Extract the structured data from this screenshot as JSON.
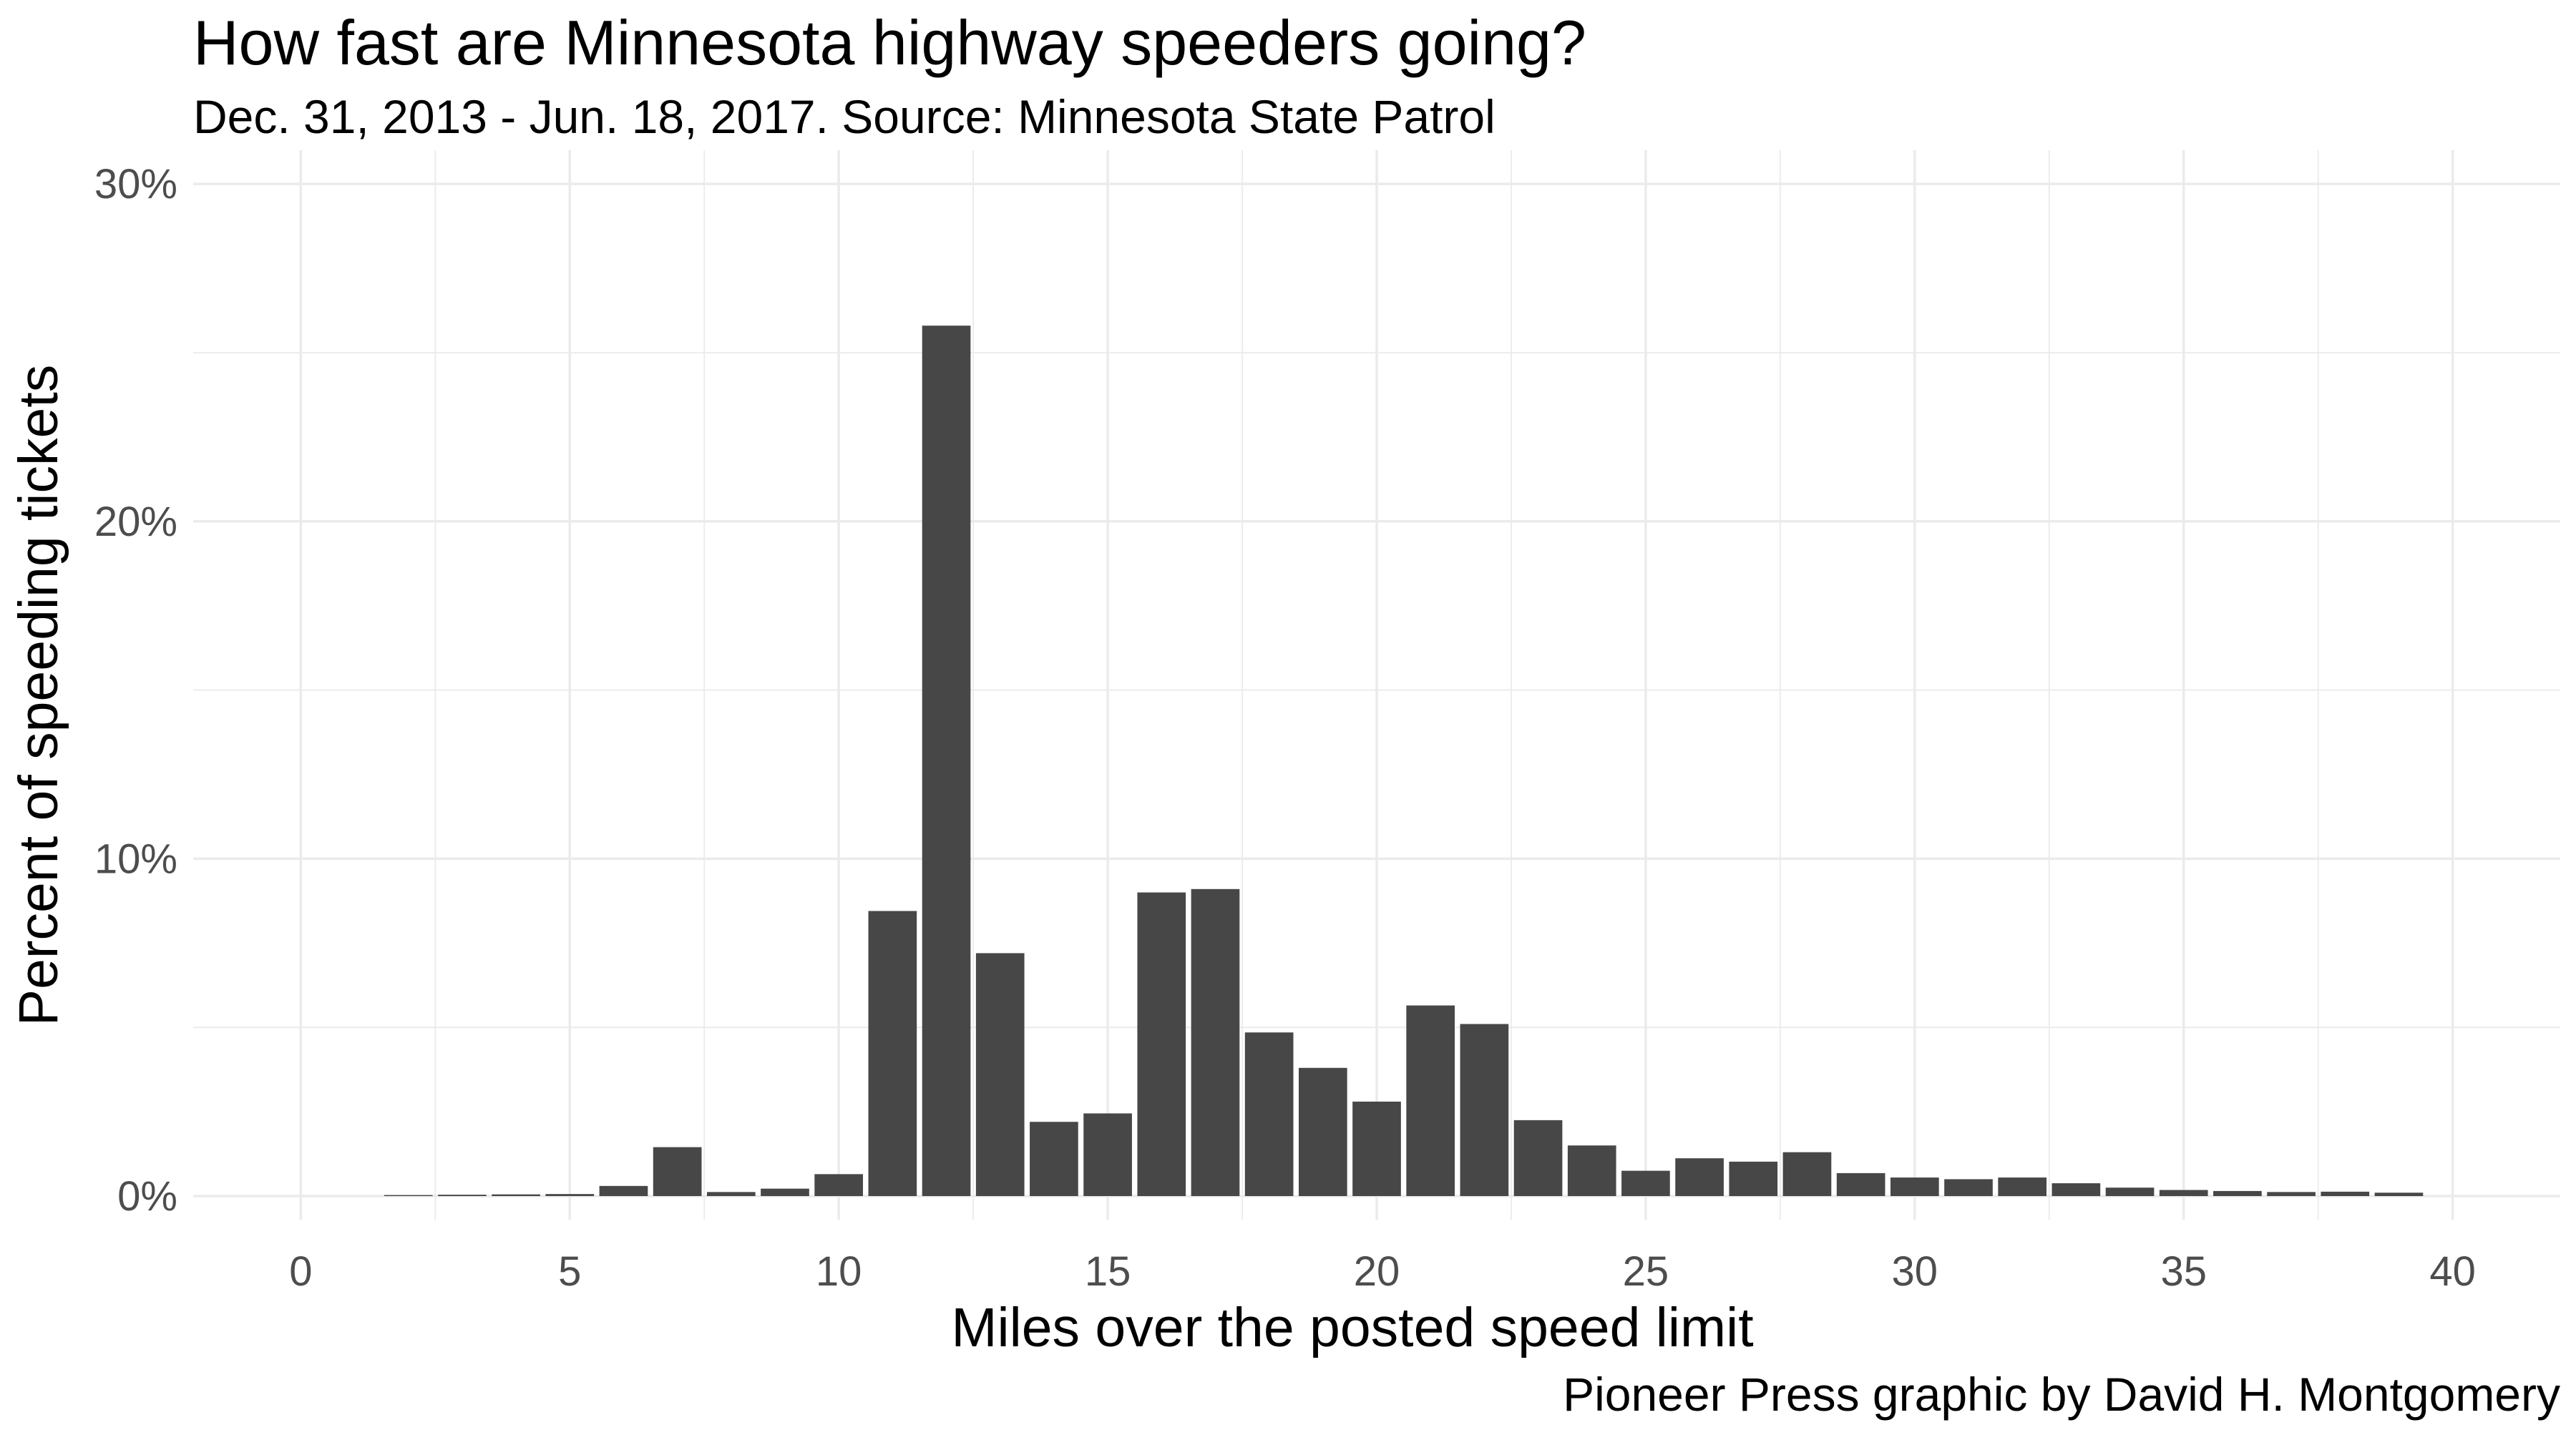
{
  "chart_data": {
    "type": "bar",
    "title": "How fast are Minnesota highway speeders going?",
    "subtitle": "Dec. 31, 2013 - Jun. 18, 2017. Source: Minnesota State Patrol",
    "xlabel": "Miles over the posted speed limit",
    "ylabel": "Percent of speeding tickets",
    "caption": "Pioneer Press graphic by David H. Montgomery",
    "xlim": [
      -2,
      42
    ],
    "ylim": [
      -0.7,
      31
    ],
    "x_ticks": [
      0,
      5,
      10,
      15,
      20,
      25,
      30,
      35,
      40
    ],
    "y_ticks": [
      0,
      10,
      20,
      30
    ],
    "y_tick_labels": [
      "0%",
      "10%",
      "20%",
      "30%"
    ],
    "grid": true,
    "bar_color": "#474747",
    "grid_color": "#ebebeb",
    "x": [
      2,
      3,
      4,
      5,
      6,
      7,
      8,
      9,
      10,
      11,
      12,
      13,
      14,
      15,
      16,
      17,
      18,
      19,
      20,
      21,
      22,
      23,
      24,
      25,
      26,
      27,
      28,
      29,
      30,
      31,
      32,
      33,
      34,
      35,
      36,
      37,
      38,
      39
    ],
    "values": [
      0.03,
      0.04,
      0.05,
      0.06,
      0.3,
      1.45,
      0.12,
      0.22,
      0.65,
      8.45,
      25.8,
      7.2,
      2.2,
      2.45,
      9.0,
      9.1,
      4.85,
      3.8,
      2.8,
      5.65,
      5.1,
      2.25,
      1.5,
      0.75,
      1.12,
      1.02,
      1.3,
      0.68,
      0.55,
      0.5,
      0.55,
      0.38,
      0.25,
      0.18,
      0.15,
      0.12,
      0.13,
      0.1
    ]
  }
}
